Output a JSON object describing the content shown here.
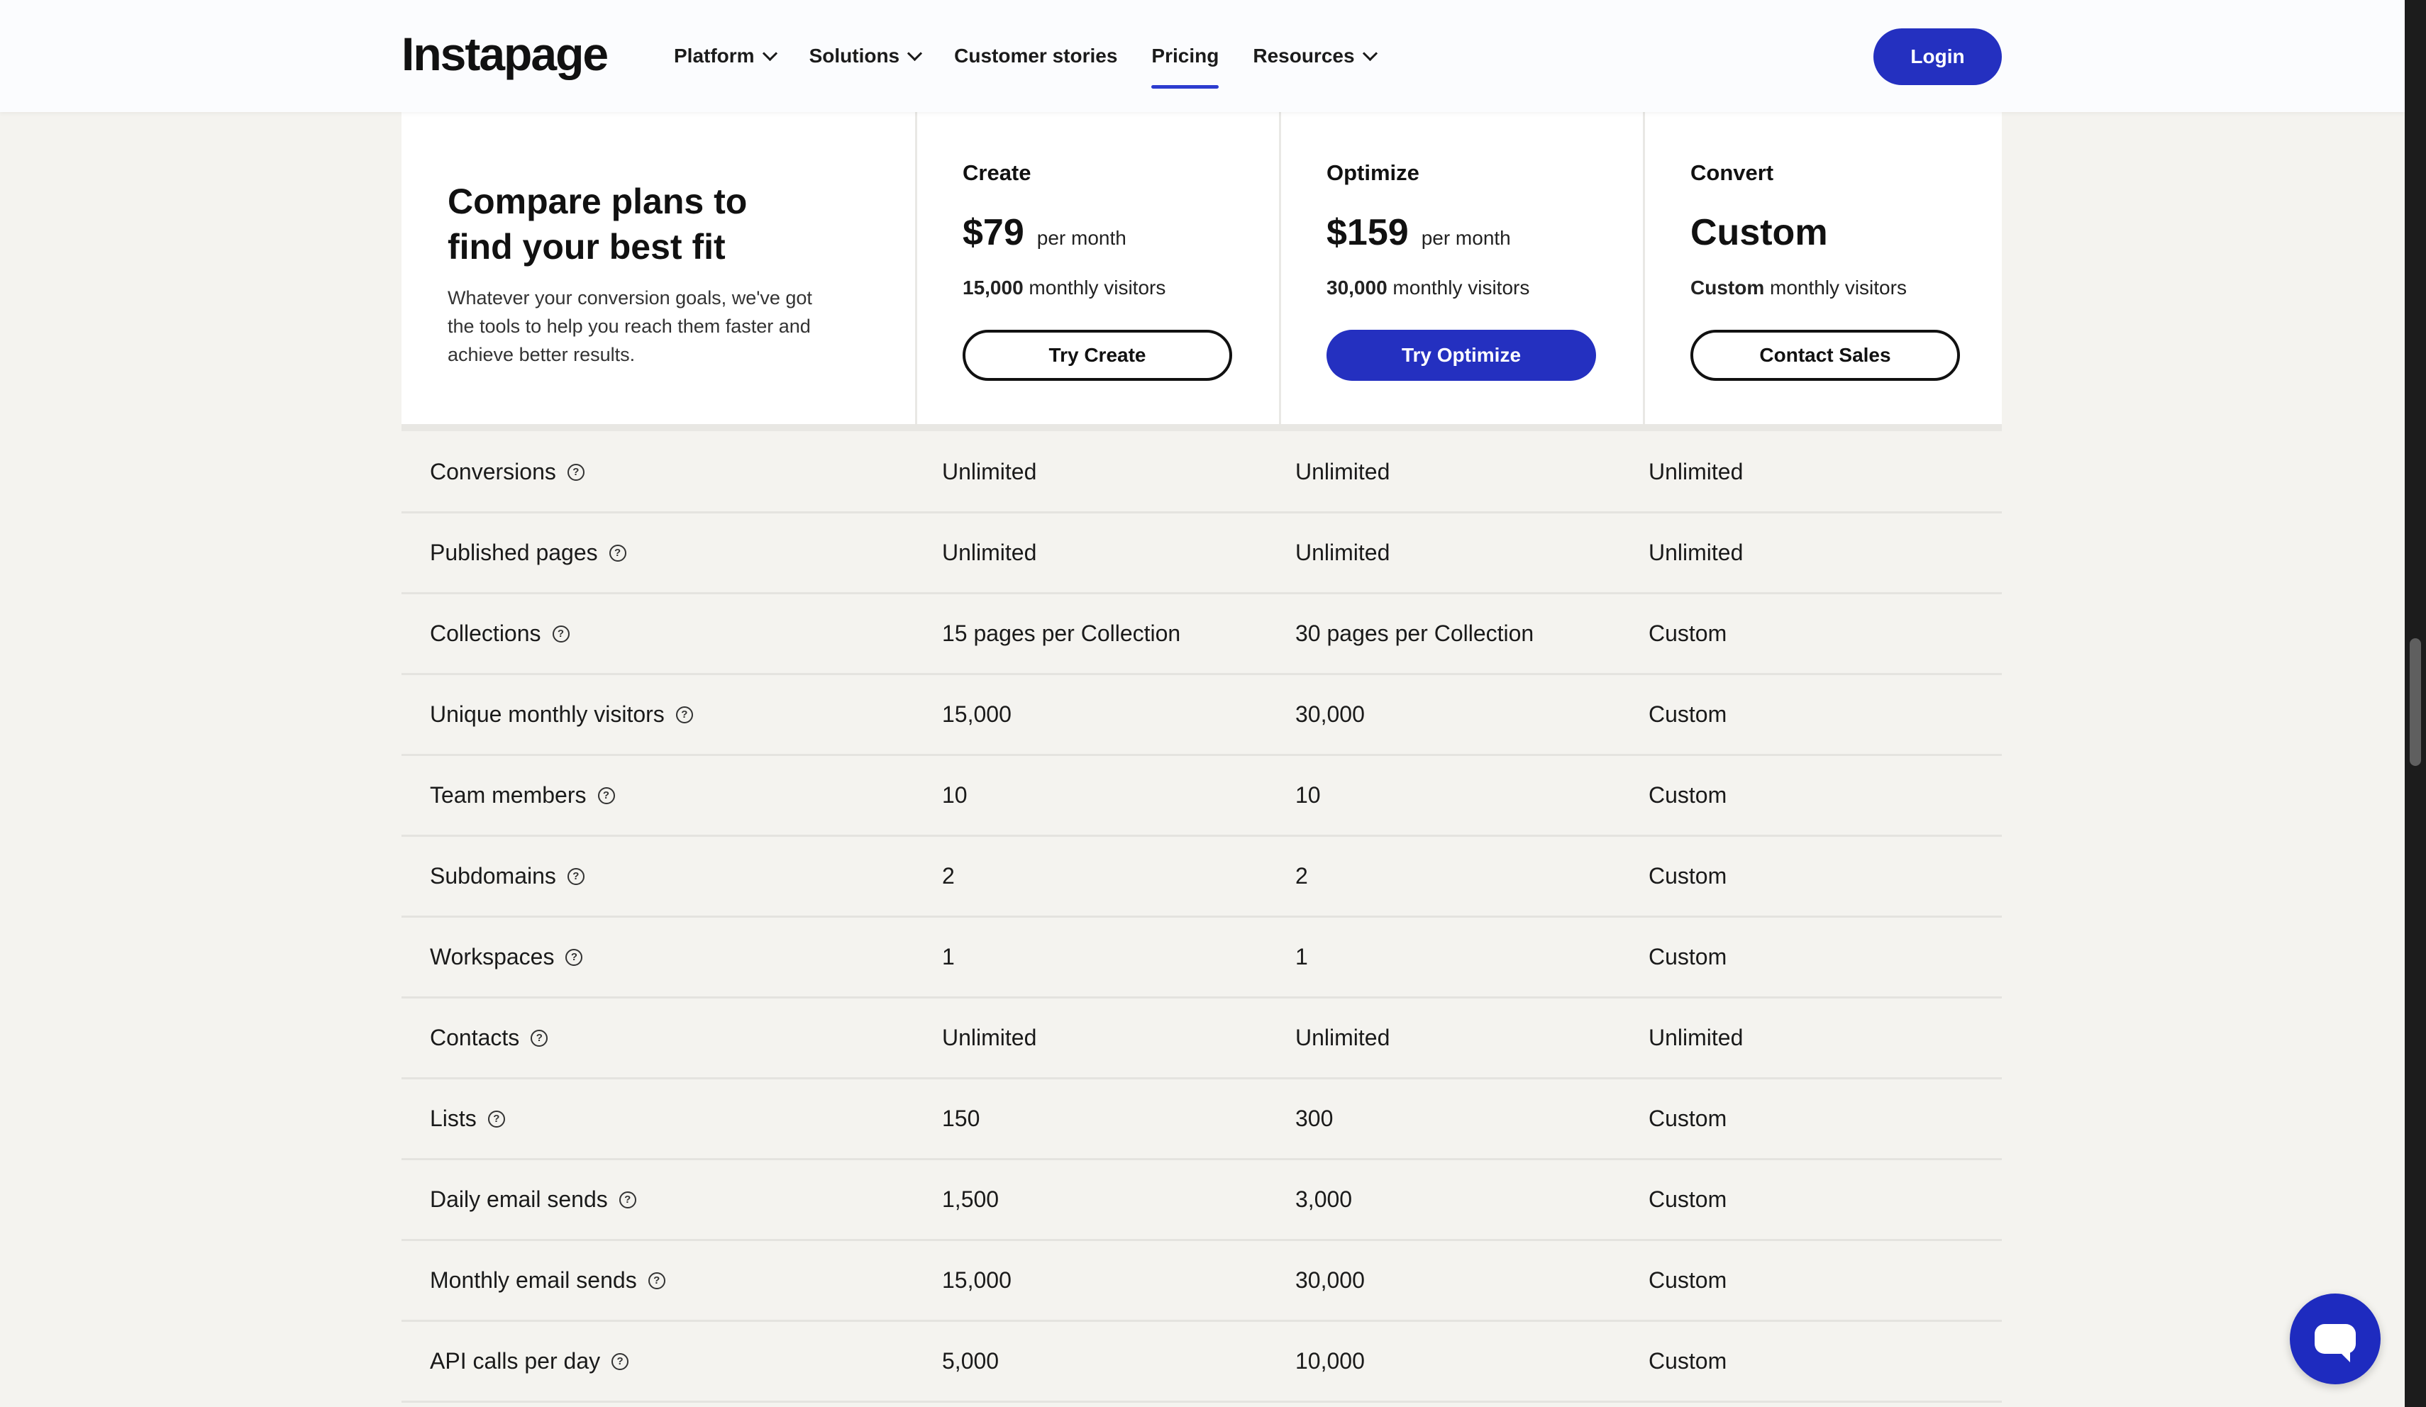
{
  "header": {
    "logo": "Instapage",
    "nav": [
      {
        "label": "Platform",
        "dropdown": true
      },
      {
        "label": "Solutions",
        "dropdown": true
      },
      {
        "label": "Customer stories",
        "dropdown": false
      },
      {
        "label": "Pricing",
        "dropdown": false,
        "active": true
      },
      {
        "label": "Resources",
        "dropdown": true
      }
    ],
    "login_label": "Login"
  },
  "intro": {
    "title": "Compare plans to find your best fit",
    "text": "Whatever your conversion goals, we've got the tools to help you reach them faster and achieve better results."
  },
  "plans": [
    {
      "name": "Create",
      "price": "$79",
      "unit": "per month",
      "visitors_value": "15,000",
      "visitors_label": "monthly visitors",
      "button": "Try Create",
      "style": "outline"
    },
    {
      "name": "Optimize",
      "price": "$159",
      "unit": "per month",
      "visitors_value": "30,000",
      "visitors_label": "monthly visitors",
      "button": "Try Optimize",
      "style": "primary"
    },
    {
      "name": "Convert",
      "price": "Custom",
      "unit": "",
      "visitors_value": "Custom",
      "visitors_label": "monthly visitors",
      "button": "Contact Sales",
      "style": "outline"
    }
  ],
  "features": [
    {
      "name": "Conversions",
      "values": [
        "Unlimited",
        "Unlimited",
        "Unlimited"
      ]
    },
    {
      "name": "Published pages",
      "values": [
        "Unlimited",
        "Unlimited",
        "Unlimited"
      ]
    },
    {
      "name": "Collections",
      "values": [
        "15 pages per Collection",
        "30 pages per Collection",
        "Custom"
      ]
    },
    {
      "name": "Unique monthly visitors",
      "values": [
        "15,000",
        "30,000",
        "Custom"
      ]
    },
    {
      "name": "Team members",
      "values": [
        "10",
        "10",
        "Custom"
      ]
    },
    {
      "name": "Subdomains",
      "values": [
        "2",
        "2",
        "Custom"
      ]
    },
    {
      "name": "Workspaces",
      "values": [
        "1",
        "1",
        "Custom"
      ]
    },
    {
      "name": "Contacts",
      "values": [
        "Unlimited",
        "Unlimited",
        "Unlimited"
      ]
    },
    {
      "name": "Lists",
      "values": [
        "150",
        "300",
        "Custom"
      ]
    },
    {
      "name": "Daily email sends",
      "values": [
        "1,500",
        "3,000",
        "Custom"
      ]
    },
    {
      "name": "Monthly email sends",
      "values": [
        "15,000",
        "30,000",
        "Custom"
      ]
    },
    {
      "name": "API calls per day",
      "values": [
        "5,000",
        "10,000",
        "Custom"
      ]
    }
  ],
  "help_icon_glyph": "?",
  "icons": {
    "chat": "chat-bubble-icon",
    "help": "question-circle-icon",
    "dropdown": "chevron-down-icon"
  },
  "colors": {
    "accent": "#2430c0",
    "background": "#f4f3ef"
  }
}
